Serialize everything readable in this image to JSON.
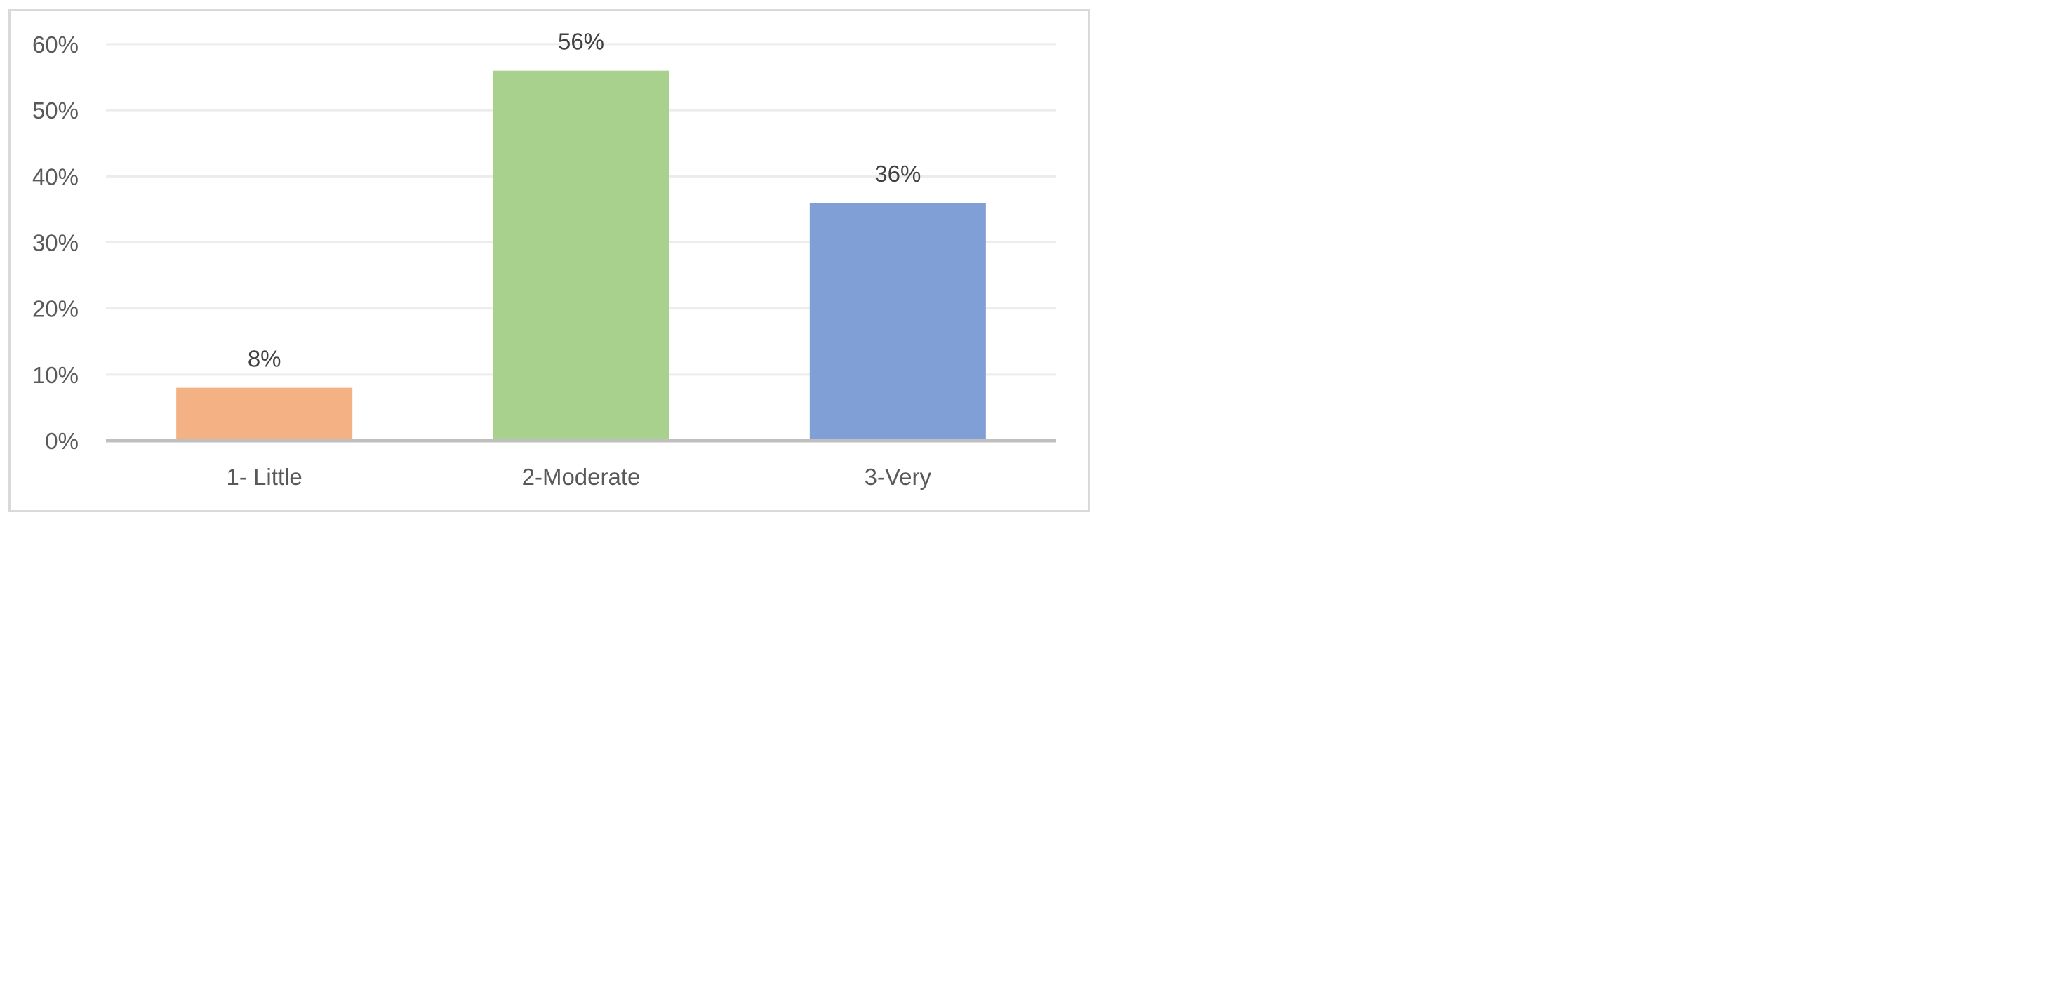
{
  "chart_data": {
    "type": "bar",
    "title": "",
    "xlabel": "",
    "ylabel": "",
    "categories": [
      "1- Little",
      "2-Moderate",
      "3-Very"
    ],
    "values": [
      8,
      56,
      36
    ],
    "value_labels": [
      "8%",
      "56%",
      "36%"
    ],
    "bar_colors": [
      "#f4b183",
      "#a9d18e",
      "#7f9fd6"
    ],
    "ylim": [
      0,
      60
    ],
    "yticks": [
      0,
      10,
      20,
      30,
      40,
      50,
      60
    ],
    "ytick_labels": [
      "0%",
      "10%",
      "20%",
      "30%",
      "40%",
      "50%",
      "60%"
    ],
    "grid": true,
    "legend": "none"
  }
}
